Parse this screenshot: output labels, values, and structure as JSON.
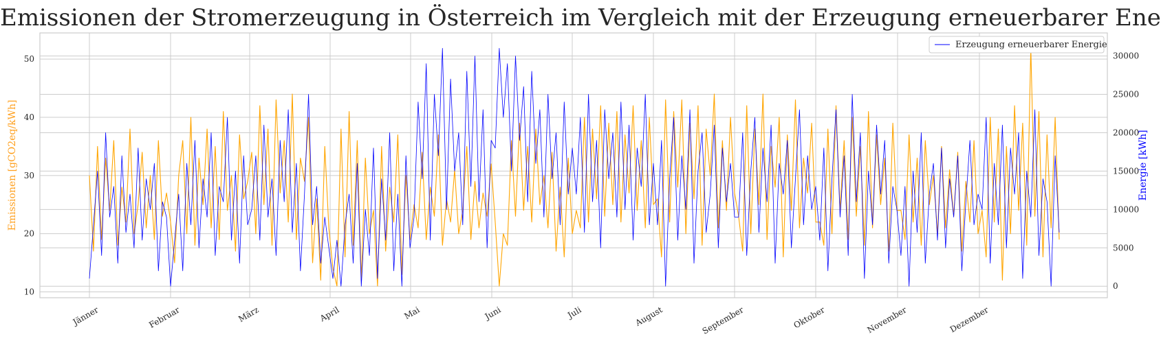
{
  "chart_data": {
    "type": "line",
    "title": "Emissionen der Stromerzeugung in Österreich im Vergleich mit der Erzeugung erneuerbarer Energie",
    "x_categories": [
      "Jänner",
      "Februar",
      "März",
      "April",
      "Mai",
      "Juni",
      "Juli",
      "August",
      "September",
      "Oktober",
      "November",
      "Dezember"
    ],
    "y_left": {
      "label": "Emissionen [gCO2eq/kWh]",
      "ticks": [
        10,
        20,
        30,
        40,
        50
      ],
      "lim": [
        9,
        54.5
      ],
      "color": "#ff9f1c"
    },
    "y_right": {
      "label": "Energie [kWh]",
      "ticks": [
        0,
        5000,
        10000,
        15000,
        20000,
        25000,
        30000
      ],
      "ticks_text": [
        "0",
        "5000",
        "10000",
        "15000",
        "20000",
        "25000",
        "30000"
      ],
      "lim": [
        -1500,
        33000
      ],
      "color": "#0000ff"
    },
    "legend": {
      "position": "top-right"
    },
    "grid": true,
    "series": [
      {
        "name": "Emissionen",
        "axis": "left",
        "color": "#ffa500",
        "monthly_values": [
          [
            30,
            17,
            35,
            19,
            33,
            24,
            36,
            18,
            28,
            22,
            38,
            20,
            25,
            34,
            21,
            30,
            19,
            36,
            23,
            27
          ],
          [
            22,
            15,
            30,
            36,
            20,
            40,
            18,
            33,
            25,
            38,
            21,
            35,
            19,
            41,
            24,
            30,
            17,
            37,
            26,
            29
          ],
          [
            34,
            20,
            42,
            25,
            38,
            18,
            43,
            27,
            36,
            22,
            44,
            19,
            33,
            29,
            40,
            15,
            26,
            12,
            35,
            21
          ],
          [
            14,
            11,
            38,
            16,
            41,
            18,
            36,
            12,
            33,
            20,
            24,
            11,
            35,
            17,
            28,
            22,
            37,
            13,
            30,
            19
          ],
          [
            25,
            21,
            34,
            19,
            28,
            23,
            37,
            18,
            26,
            22,
            31,
            20,
            24,
            35,
            19,
            29,
            21,
            27,
            23,
            32
          ],
          [
            22,
            11,
            20,
            18,
            36,
            23,
            39,
            24,
            35,
            22,
            38,
            25,
            30,
            21,
            34,
            17,
            28,
            16,
            33,
            20
          ],
          [
            24,
            21,
            40,
            22,
            38,
            26,
            42,
            23,
            39,
            25,
            41,
            22,
            37,
            27,
            42,
            24,
            36,
            21,
            40,
            25
          ],
          [
            26,
            16,
            43,
            22,
            41,
            28,
            43,
            20,
            39,
            26,
            42,
            18,
            38,
            30,
            44,
            21,
            36,
            24,
            40,
            27
          ],
          [
            23,
            17,
            42,
            20,
            38,
            25,
            44,
            19,
            35,
            28,
            40,
            16,
            37,
            24,
            43,
            21,
            33,
            27,
            39,
            22
          ],
          [
            22,
            18,
            38,
            20,
            42,
            24,
            36,
            19,
            40,
            23,
            35,
            18,
            41,
            21,
            37,
            25,
            33,
            17,
            39,
            24
          ],
          [
            24,
            19,
            37,
            22,
            33,
            18,
            36,
            25,
            30,
            20,
            35,
            21,
            31,
            23,
            34,
            17,
            29,
            22,
            36,
            20
          ],
          [
            24,
            16,
            40,
            22,
            38,
            12,
            35,
            20,
            42,
            24,
            39,
            18,
            52,
            23,
            41,
            16,
            37,
            21,
            40,
            19
          ]
        ]
      },
      {
        "name": "Erzeugung erneuerbarer Energie",
        "axis": "right",
        "color": "#0000ff",
        "monthly_values": [
          [
            1000,
            8000,
            15000,
            4000,
            20000,
            9000,
            13000,
            3000,
            17000,
            7000,
            12000,
            5000,
            18000,
            6000,
            14000,
            10000,
            16000,
            2000,
            11000,
            9000
          ],
          [
            0,
            6000,
            12000,
            2000,
            16000,
            8000,
            19000,
            5000,
            14000,
            9000,
            20000,
            4000,
            13000,
            11000,
            22000,
            6000,
            15000,
            3000,
            17000,
            8000
          ],
          [
            10000,
            17000,
            6000,
            21000,
            9000,
            14000,
            4000,
            19000,
            11000,
            23000,
            7000,
            16000,
            2000,
            12000,
            25000,
            8000,
            13000,
            3000,
            9000,
            5000
          ],
          [
            1000,
            6000,
            0,
            8000,
            12000,
            3000,
            16000,
            0,
            10000,
            4000,
            18000,
            1000,
            14000,
            6000,
            20000,
            2000,
            12000,
            0,
            17000,
            5000
          ],
          [
            9000,
            24000,
            14000,
            29000,
            6000,
            25000,
            17000,
            31000,
            10000,
            27000,
            15000,
            20000,
            8000,
            28000,
            13000,
            30000,
            11000,
            23000,
            5000,
            19000
          ],
          [
            18000,
            31000,
            22000,
            29000,
            15000,
            30000,
            19000,
            26000,
            11000,
            28000,
            16000,
            23000,
            9000,
            25000,
            14000,
            20000,
            8000,
            24000,
            12000,
            18000
          ],
          [
            12000,
            22000,
            7000,
            25000,
            11000,
            19000,
            5000,
            23000,
            14000,
            20000,
            9000,
            24000,
            10000,
            21000,
            6000,
            18000,
            13000,
            25000,
            8000,
            16000
          ],
          [
            8000,
            19000,
            0,
            14000,
            22000,
            6000,
            17000,
            10000,
            23000,
            3000,
            15000,
            20000,
            7000,
            12000,
            21000,
            5000,
            18000,
            11000,
            16000,
            9000
          ],
          [
            9000,
            20000,
            4000,
            15000,
            22000,
            7000,
            18000,
            11000,
            21000,
            3000,
            16000,
            12000,
            19000,
            5000,
            14000,
            23000,
            8000,
            17000,
            10000,
            13000
          ],
          [
            6000,
            18000,
            2000,
            14000,
            23000,
            9000,
            17000,
            4000,
            25000,
            11000,
            20000,
            1000,
            15000,
            8000,
            21000,
            12000,
            19000,
            3000,
            13000,
            10000
          ],
          [
            4000,
            13000,
            0,
            15000,
            7000,
            20000,
            3000,
            12000,
            16000,
            6000,
            18000,
            5000,
            14000,
            9000,
            17000,
            2000,
            11000,
            19000,
            8000,
            12000
          ],
          [
            10000,
            22000,
            3000,
            16000,
            8000,
            21000,
            5000,
            18000,
            12000,
            20000,
            1000,
            15000,
            9000,
            23000,
            4000,
            14000,
            11000,
            0,
            17000,
            7000
          ]
        ]
      }
    ]
  }
}
